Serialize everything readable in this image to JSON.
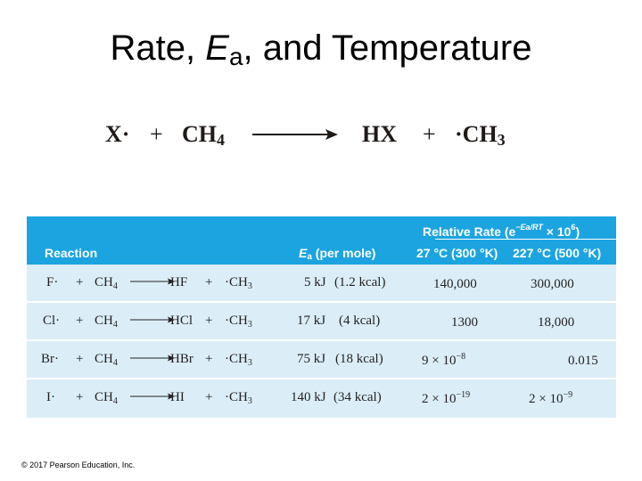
{
  "title": {
    "prefix": "Rate, ",
    "ea_symbol": "E",
    "ea_subscript": "a",
    "suffix": ", and Temperature"
  },
  "equation": {
    "reactant1": "X·",
    "plus1": "+",
    "reactant2_base": "CH",
    "reactant2_sub": "4",
    "product1": "HX",
    "plus2": "+",
    "product2_base": "·CH",
    "product2_sub": "3"
  },
  "table": {
    "header": {
      "reaction": "Reaction",
      "ea_symbol": "E",
      "ea_subscript": "a",
      "ea_suffix": " (per mole)",
      "relative_rate_prefix": "Relative Rate (e",
      "relative_rate_exponent": "−Ea/RT",
      "relative_rate_suffix": " × 10",
      "relative_rate_power": "6",
      "relative_rate_close": ")",
      "col_temp1": "27 °C (300 °K)",
      "col_temp2": "227 °C (500 °K)"
    },
    "rows": [
      {
        "radical": "F·",
        "plus1": "+",
        "reactant_base": "CH",
        "reactant_sub": "4",
        "product": "HF",
        "plus2": "+",
        "product2_base": "·CH",
        "product2_sub": "3",
        "ea_kj": "5 kJ",
        "ea_kcal": "(1.2 kcal)",
        "rate1_base": "140,000",
        "rate1_exp": "",
        "rate2_base": "300,000",
        "rate2_exp": ""
      },
      {
        "radical": "Cl·",
        "plus1": "+",
        "reactant_base": "CH",
        "reactant_sub": "4",
        "product": "HCl",
        "plus2": "+",
        "product2_base": "·CH",
        "product2_sub": "3",
        "ea_kj": "17 kJ",
        "ea_kcal": "(4 kcal)",
        "rate1_base": "1300",
        "rate1_exp": "",
        "rate2_base": "18,000",
        "rate2_exp": ""
      },
      {
        "radical": "Br·",
        "plus1": "+",
        "reactant_base": "CH",
        "reactant_sub": "4",
        "product": "HBr",
        "plus2": "+",
        "product2_base": "·CH",
        "product2_sub": "3",
        "ea_kj": "75 kJ",
        "ea_kcal": "(18 kcal)",
        "rate1_base": "9 × 10",
        "rate1_exp": "−8",
        "rate2_base": "0.015",
        "rate2_exp": ""
      },
      {
        "radical": "I·",
        "plus1": "+",
        "reactant_base": "CH",
        "reactant_sub": "4",
        "product": "HI",
        "plus2": "+",
        "product2_base": "·CH",
        "product2_sub": "3",
        "ea_kj": "140 kJ",
        "ea_kcal": "(34 kcal)",
        "rate1_base": "2 × 10",
        "rate1_exp": "−19",
        "rate2_base": "2 × 10",
        "rate2_exp": "−9"
      }
    ]
  },
  "copyright": "© 2017 Pearson Education, Inc.",
  "colors": {
    "header_bg": "#1ba4e0",
    "table_bg": "#dbeef8",
    "text": "#231f20"
  }
}
